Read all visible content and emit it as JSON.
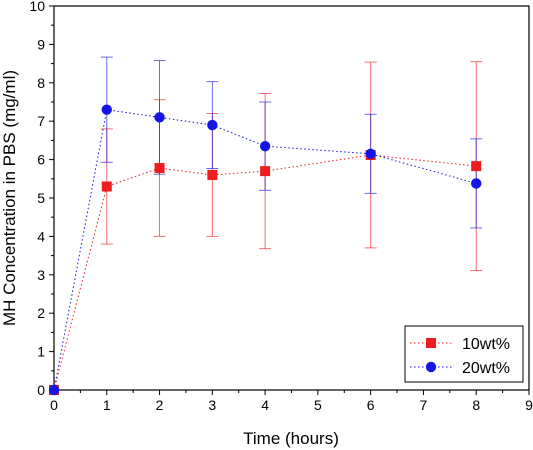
{
  "chart_data": {
    "type": "line",
    "xlabel": "Time (hours)",
    "ylabel": "MH Concentration in PBS (mg/ml)",
    "xlim": [
      0,
      9
    ],
    "ylim": [
      0,
      10
    ],
    "xticks": [
      0,
      1,
      2,
      3,
      4,
      5,
      6,
      7,
      8,
      9
    ],
    "yticks": [
      0,
      1,
      2,
      3,
      4,
      5,
      6,
      7,
      8,
      9,
      10
    ],
    "grid": false,
    "legend_position": "bottom-right",
    "x": [
      0,
      1,
      2,
      3,
      4,
      6,
      8
    ],
    "series": [
      {
        "name": "10wt%",
        "color": "#ee1c1c",
        "marker": "square",
        "line_style": "dotted",
        "values": [
          0,
          5.3,
          5.78,
          5.6,
          5.7,
          6.12,
          5.83
        ],
        "error": [
          0,
          1.5,
          1.78,
          1.6,
          2.02,
          2.42,
          2.72
        ]
      },
      {
        "name": "20wt%",
        "color": "#1515e6",
        "marker": "circle",
        "line_style": "dotted",
        "values": [
          0,
          7.3,
          7.1,
          6.9,
          6.35,
          6.15,
          5.38
        ],
        "error": [
          0,
          1.37,
          1.48,
          1.13,
          1.15,
          1.03,
          1.16
        ]
      }
    ]
  }
}
